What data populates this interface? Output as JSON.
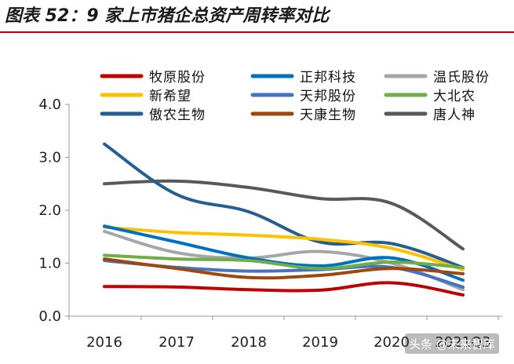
{
  "title": "图表 52：9 家上市猪企总资产周转率对比",
  "watermark": "头条 @未来智库",
  "chart_data": {
    "type": "line",
    "title": "图表 52：9 家上市猪企总资产周转率对比",
    "xlabel": "",
    "ylabel": "",
    "categories": [
      "2016",
      "2017",
      "2018",
      "2019",
      "2020",
      "2021Q3"
    ],
    "ylim": [
      0,
      4
    ],
    "yticks": [
      "0.0",
      "1.0",
      "2.0",
      "3.0",
      "4.0"
    ],
    "legend_position": "top",
    "series": [
      {
        "name": "牧原股份",
        "color": "#c00000",
        "values": [
          0.56,
          0.55,
          0.5,
          0.49,
          0.63,
          0.4
        ]
      },
      {
        "name": "正邦科技",
        "color": "#0070c0",
        "values": [
          1.7,
          1.4,
          1.1,
          0.95,
          1.1,
          0.68
        ]
      },
      {
        "name": "温氏股份",
        "color": "#a6a6a6",
        "values": [
          1.6,
          1.2,
          1.1,
          1.22,
          1.0,
          0.5
        ]
      },
      {
        "name": "新希望",
        "color": "#ffc000",
        "values": [
          1.68,
          1.58,
          1.53,
          1.45,
          1.28,
          0.88
        ]
      },
      {
        "name": "天邦股份",
        "color": "#4472c4",
        "values": [
          1.05,
          0.92,
          0.85,
          0.88,
          0.92,
          0.55
        ]
      },
      {
        "name": "大北农",
        "color": "#70ad47",
        "values": [
          1.15,
          1.08,
          1.05,
          0.9,
          1.02,
          0.92
        ]
      },
      {
        "name": "傲农生物",
        "color": "#255e91",
        "values": [
          3.25,
          2.3,
          1.97,
          1.4,
          1.37,
          0.92
        ]
      },
      {
        "name": "天康生物",
        "color": "#9e480e",
        "values": [
          1.08,
          0.9,
          0.73,
          0.77,
          0.9,
          0.8
        ]
      },
      {
        "name": "唐人神",
        "color": "#595959",
        "values": [
          2.5,
          2.55,
          2.43,
          2.22,
          2.13,
          1.27
        ]
      }
    ]
  }
}
